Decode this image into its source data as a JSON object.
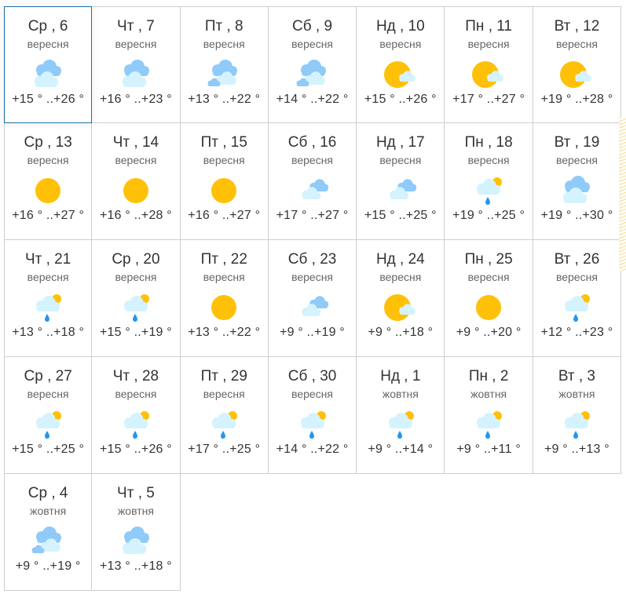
{
  "colors": {
    "sun": "#FFC107",
    "cloud_dark": "#90CAF9",
    "cloud_light": "#D4F3FF",
    "rain": "#2196F3",
    "selected_border": "#1a6fa8"
  },
  "selected_index": 0,
  "days": [
    {
      "day": "Ср , 6",
      "month": "вересня",
      "icon": "cloudy",
      "temp": "+15 ° ..+26 °"
    },
    {
      "day": "Чт , 7",
      "month": "вересня",
      "icon": "cloudy",
      "temp": "+16 ° ..+23 °"
    },
    {
      "day": "Пт , 8",
      "month": "вересня",
      "icon": "overcast",
      "temp": "+13 ° ..+22 °"
    },
    {
      "day": "Сб , 9",
      "month": "вересня",
      "icon": "overcast",
      "temp": "+14 ° ..+22 °"
    },
    {
      "day": "Нд , 10",
      "month": "вересня",
      "icon": "sun-cloud",
      "temp": "+15 ° ..+26 °"
    },
    {
      "day": "Пн , 11",
      "month": "вересня",
      "icon": "sun-cloud",
      "temp": "+17 ° ..+27 °"
    },
    {
      "day": "Вт , 12",
      "month": "вересня",
      "icon": "sun-cloud",
      "temp": "+19 ° ..+28 °"
    },
    {
      "day": "Ср , 13",
      "month": "вересня",
      "icon": "sun",
      "temp": "+16 ° ..+27 °"
    },
    {
      "day": "Чт , 14",
      "month": "вересня",
      "icon": "sun",
      "temp": "+16 ° ..+28 °"
    },
    {
      "day": "Пт , 15",
      "month": "вересня",
      "icon": "sun",
      "temp": "+16 ° ..+27 °"
    },
    {
      "day": "Сб , 16",
      "month": "вересня",
      "icon": "light-cloud",
      "temp": "+17 ° ..+27 °"
    },
    {
      "day": "Нд , 17",
      "month": "вересня",
      "icon": "light-cloud",
      "temp": "+15 ° ..+25 °"
    },
    {
      "day": "Пн , 18",
      "month": "вересня",
      "icon": "rain-sun",
      "temp": "+19 ° ..+25 °"
    },
    {
      "day": "Вт , 19",
      "month": "вересня",
      "icon": "cloudy",
      "temp": "+19 ° ..+30 °"
    },
    {
      "day": "Чт , 21",
      "month": "вересня",
      "icon": "rain-sun",
      "temp": "+13 ° ..+18 °"
    },
    {
      "day": "Ср , 20",
      "month": "вересня",
      "icon": "rain-sun",
      "temp": "+15 ° ..+19 °"
    },
    {
      "day": "Пт , 22",
      "month": "вересня",
      "icon": "sun",
      "temp": "+13 ° ..+22 °"
    },
    {
      "day": "Сб , 23",
      "month": "вересня",
      "icon": "light-cloud",
      "temp": "+9 ° ..+19 °"
    },
    {
      "day": "Нд , 24",
      "month": "вересня",
      "icon": "sun-cloud",
      "temp": "+9 ° ..+18 °"
    },
    {
      "day": "Пн , 25",
      "month": "вересня",
      "icon": "sun",
      "temp": "+9 ° ..+20 °"
    },
    {
      "day": "Вт , 26",
      "month": "вересня",
      "icon": "rain-sun",
      "temp": "+12 ° ..+23 °"
    },
    {
      "day": "Ср , 27",
      "month": "вересня",
      "icon": "rain-sun",
      "temp": "+15 ° ..+25 °"
    },
    {
      "day": "Чт , 28",
      "month": "вересня",
      "icon": "rain-sun",
      "temp": "+15 ° ..+26 °"
    },
    {
      "day": "Пт , 29",
      "month": "вересня",
      "icon": "rain-sun",
      "temp": "+17 ° ..+25 °"
    },
    {
      "day": "Сб , 30",
      "month": "вересня",
      "icon": "rain-sun",
      "temp": "+14 ° ..+22 °"
    },
    {
      "day": "Нд , 1",
      "month": "жовтня",
      "icon": "rain-sun",
      "temp": "+9 ° ..+14 °"
    },
    {
      "day": "Пн , 2",
      "month": "жовтня",
      "icon": "rain-sun",
      "temp": "+9 ° ..+11 °"
    },
    {
      "day": "Вт , 3",
      "month": "жовтня",
      "icon": "rain-sun",
      "temp": "+9 ° ..+13 °"
    },
    {
      "day": "Ср , 4",
      "month": "жовтня",
      "icon": "overcast",
      "temp": "+9 ° ..+19 °"
    },
    {
      "day": "Чт , 5",
      "month": "жовтня",
      "icon": "cloudy",
      "temp": "+13 ° ..+18 °"
    }
  ]
}
